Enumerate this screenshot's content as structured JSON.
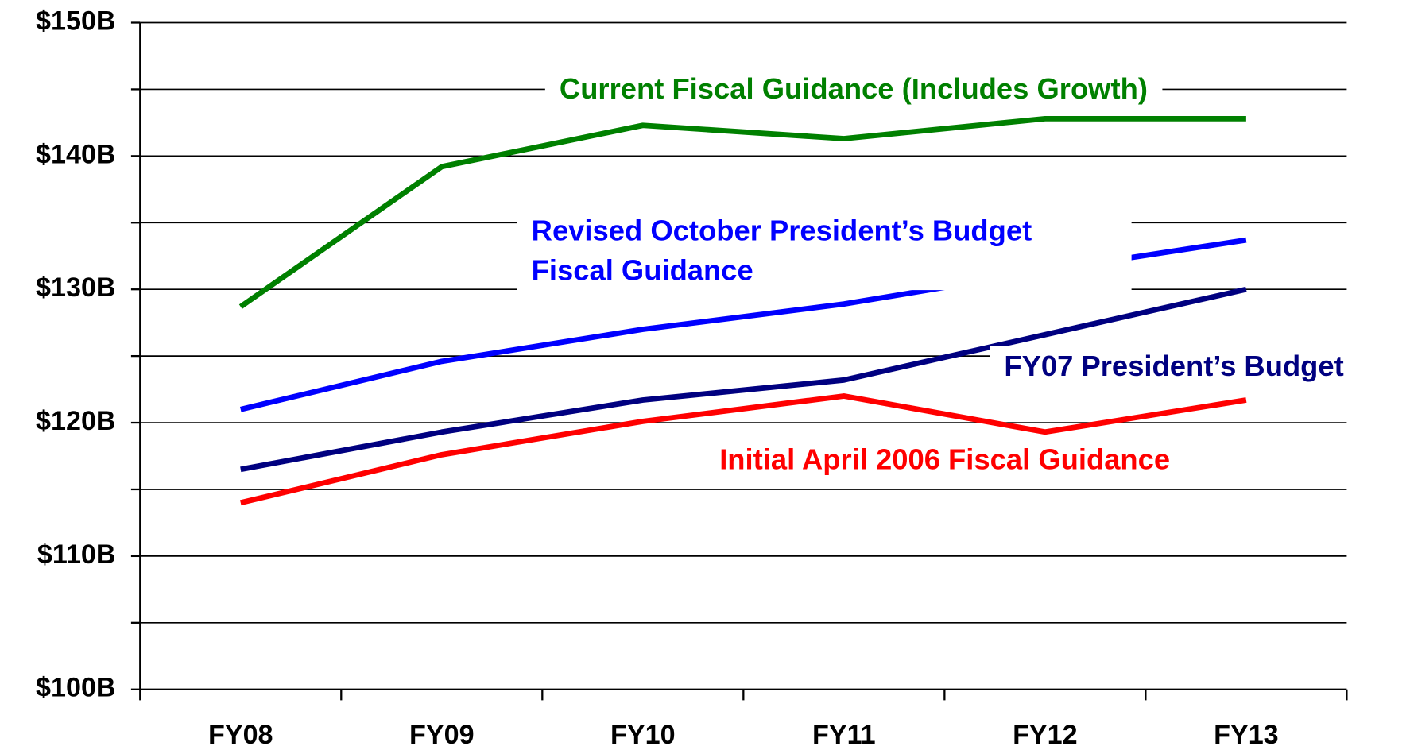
{
  "chart_data": {
    "type": "line",
    "categories": [
      "FY08",
      "FY09",
      "FY10",
      "FY11",
      "FY12",
      "FY13"
    ],
    "series": [
      {
        "name": "Current Fiscal Guidance (Includes Growth)",
        "color": "#008000",
        "values": [
          128.7,
          139.2,
          142.3,
          141.3,
          142.8,
          142.8
        ]
      },
      {
        "name": "Revised October President’s Budget Fiscal Guidance",
        "color": "#0000ff",
        "values": [
          121.0,
          124.6,
          127.0,
          128.9,
          131.4,
          133.7
        ]
      },
      {
        "name": "FY07 President’s Budget",
        "color": "#000080",
        "values": [
          116.5,
          119.3,
          121.7,
          123.2,
          126.6,
          130.0
        ]
      },
      {
        "name": "Initial April 2006 Fiscal Guidance",
        "color": "#ff0000",
        "values": [
          114.0,
          117.6,
          120.1,
          122.0,
          119.3,
          121.7
        ]
      }
    ],
    "ylim": [
      100,
      150
    ],
    "yticks": [
      {
        "value": 100,
        "label": "$100B"
      },
      {
        "value": 110,
        "label": "$110B"
      },
      {
        "value": 120,
        "label": "$120B"
      },
      {
        "value": 130,
        "label": "$130B"
      },
      {
        "value": 140,
        "label": "$140B"
      },
      {
        "value": 150,
        "label": "$150B"
      }
    ],
    "minor_yticks": [
      105,
      115,
      125,
      135,
      145
    ],
    "grid": true
  }
}
